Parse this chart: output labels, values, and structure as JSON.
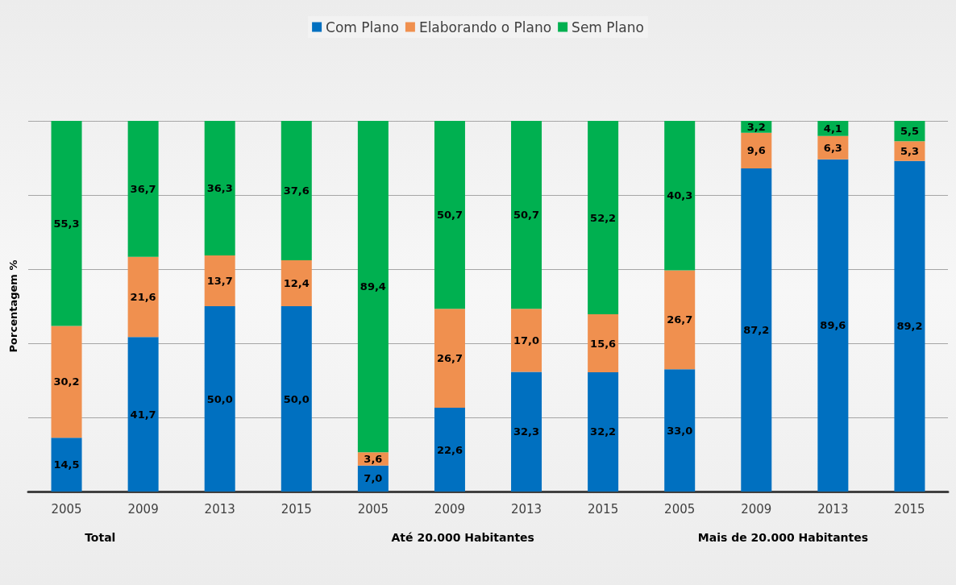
{
  "chart_data": {
    "type": "bar",
    "stacked": true,
    "ylabel": "Porcentagem %",
    "categories": [
      "2005",
      "2009",
      "2013",
      "2015",
      "2005",
      "2009",
      "2013",
      "2015",
      "2005",
      "2009",
      "2013",
      "2015"
    ],
    "series": [
      {
        "name": "Com Plano",
        "color": "#0070c0",
        "values": [
          14.5,
          41.7,
          50.0,
          50.0,
          7.0,
          22.6,
          32.3,
          32.2,
          33.0,
          87.2,
          89.6,
          89.2
        ],
        "value_labels": [
          "14,5",
          "41,7",
          "50,0",
          "50,0",
          "7,0",
          "22,6",
          "32,3",
          "32,2",
          "33,0",
          "87,2",
          "89,6",
          "89,2"
        ]
      },
      {
        "name": "Elaborando o Plano",
        "color": "#f0904f",
        "values": [
          30.2,
          21.6,
          13.7,
          12.4,
          3.6,
          26.7,
          17.0,
          15.6,
          26.7,
          9.6,
          6.3,
          5.3
        ],
        "value_labels": [
          "30,2",
          "21,6",
          "13,7",
          "12,4",
          "3,6",
          "26,7",
          "17,0",
          "15,6",
          "26,7",
          "9,6",
          "6,3",
          "5,3"
        ]
      },
      {
        "name": "Sem Plano",
        "color": "#00b050",
        "values": [
          55.3,
          36.7,
          36.3,
          37.6,
          89.4,
          50.7,
          50.7,
          52.2,
          40.3,
          3.2,
          4.1,
          5.5
        ],
        "value_labels": [
          "55,3",
          "36,7",
          "36,3",
          "37,6",
          "89,4",
          "50,7",
          "50,7",
          "52,2",
          "40,3",
          "3,2",
          "4,1",
          "5,5"
        ]
      }
    ],
    "ylim": [
      0,
      100
    ],
    "yticks": [
      {
        "value": 0,
        "label": null
      },
      {
        "value": 20,
        "label": null
      },
      {
        "value": 40,
        "label": null
      },
      {
        "value": 60,
        "label": null
      },
      {
        "value": 80,
        "label": null
      },
      {
        "value": 100,
        "label": null
      }
    ],
    "tick_labels": "x",
    "grid": "y",
    "legend": "top",
    "annotations": [
      "Total",
      "Até 20.000 Habitantes",
      "Mais de 20.000 Habitantes"
    ]
  }
}
